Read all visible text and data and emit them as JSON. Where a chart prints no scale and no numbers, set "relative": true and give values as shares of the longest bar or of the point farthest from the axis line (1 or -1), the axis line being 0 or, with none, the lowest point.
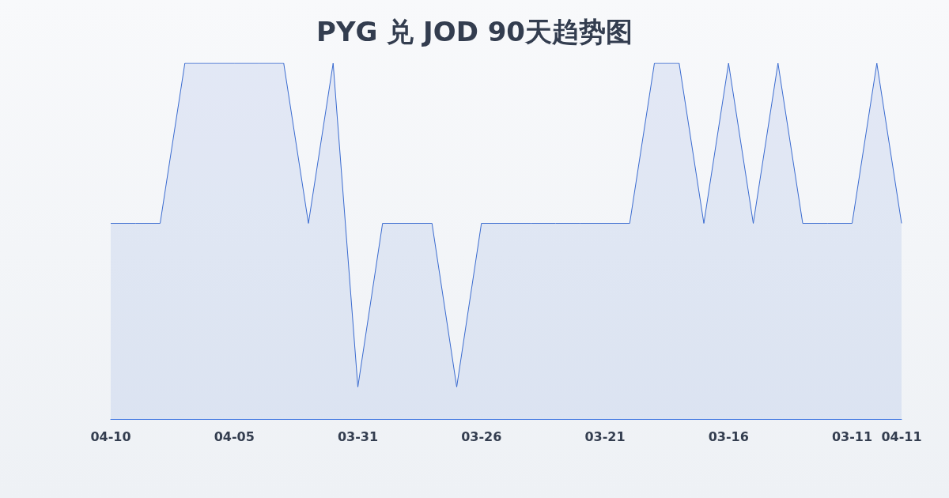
{
  "chart_data": {
    "type": "area",
    "title": "PYG 兑 JOD 90天趋势图",
    "relative": true,
    "categories": [
      "04-10",
      null,
      null,
      null,
      null,
      "04-05",
      null,
      null,
      null,
      null,
      "03-31",
      null,
      null,
      null,
      null,
      "03-26",
      null,
      null,
      null,
      null,
      "03-21",
      null,
      null,
      null,
      null,
      "03-16",
      null,
      null,
      null,
      null,
      "03-11",
      null,
      "04-11"
    ],
    "series": [
      {
        "color": "#3a6bd0",
        "values": [
          0.55,
          0.55,
          0.55,
          1,
          1,
          1,
          1,
          1,
          0.55,
          1,
          0.09,
          0.55,
          0.55,
          0.55,
          0.09,
          0.55,
          0.55,
          0.55,
          0.55,
          0.55,
          0.55,
          0.55,
          1,
          1,
          0.55,
          1,
          0.55,
          1,
          0.55,
          0.55,
          0.55,
          1,
          0.55
        ]
      }
    ],
    "marker": "none"
  }
}
